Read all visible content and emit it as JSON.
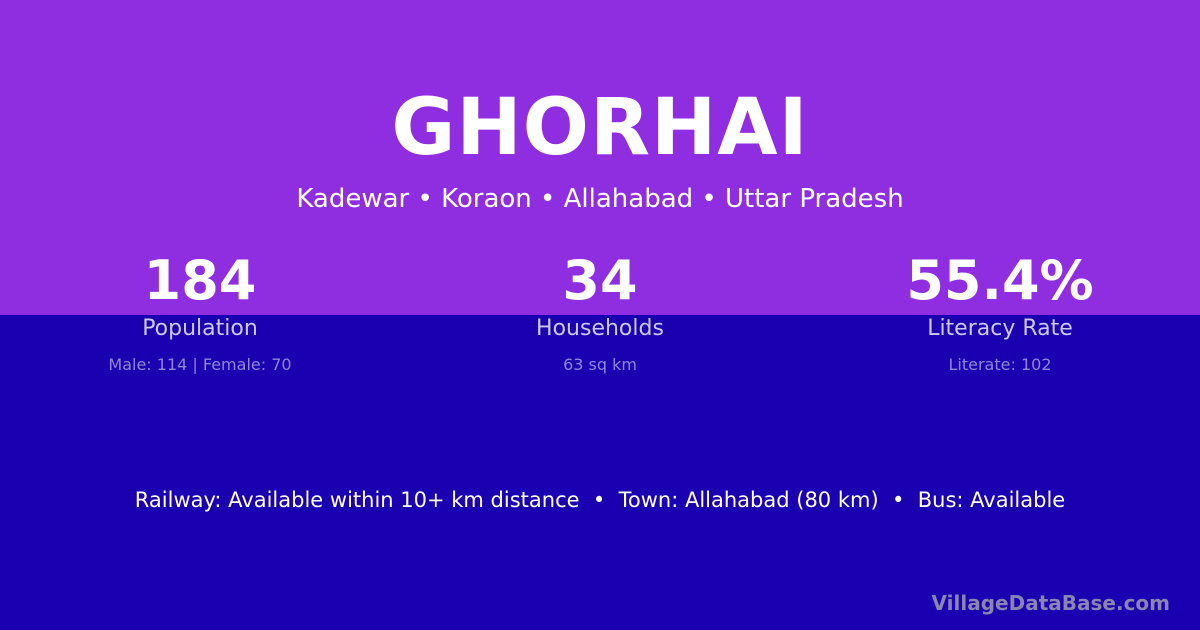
{
  "colors": {
    "top": "#8f2ee0",
    "bottom": "#1a00b0"
  },
  "title": "GHORHAI",
  "location": "Kadewar • Koraon • Allahabad • Uttar Pradesh",
  "stats": [
    {
      "value": "184",
      "label": "Population",
      "detail": "Male: 114 | Female: 70"
    },
    {
      "value": "34",
      "label": "Households",
      "detail": "63 sq km"
    },
    {
      "value": "55.4%",
      "label": "Literacy Rate",
      "detail": "Literate: 102"
    }
  ],
  "footer": "Railway: Available within 10+ km distance  •  Town: Allahabad (80 km)  •  Bus: Available",
  "watermark": "VillageDataBase.com"
}
